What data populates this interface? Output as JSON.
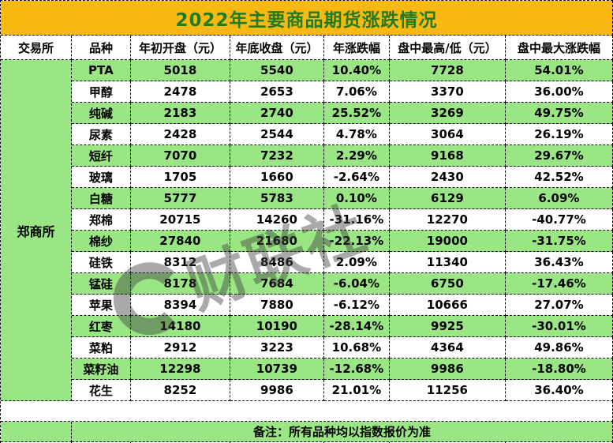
{
  "chart_data": {
    "type": "table",
    "title": "2022年主要商品期货涨跌情况",
    "columns": [
      "交易所",
      "品种",
      "年初开盘（元）",
      "年底收盘（元）",
      "年涨跌幅",
      "盘中最高/低（元）",
      "盘中最大涨跌幅"
    ],
    "exchange": "郑商所",
    "rows": [
      {
        "variety": "PTA",
        "open": "5018",
        "close": "5540",
        "year_change": "10.40%",
        "intraday_high_low": "7728",
        "max_intraday_change": "54.01%"
      },
      {
        "variety": "甲醇",
        "open": "2478",
        "close": "2653",
        "year_change": "7.06%",
        "intraday_high_low": "3370",
        "max_intraday_change": "36.00%"
      },
      {
        "variety": "纯碱",
        "open": "2183",
        "close": "2740",
        "year_change": "25.52%",
        "intraday_high_low": "3269",
        "max_intraday_change": "49.75%"
      },
      {
        "variety": "尿素",
        "open": "2428",
        "close": "2544",
        "year_change": "4.78%",
        "intraday_high_low": "3064",
        "max_intraday_change": "26.19%"
      },
      {
        "variety": "短纤",
        "open": "7070",
        "close": "7232",
        "year_change": "2.29%",
        "intraday_high_low": "9168",
        "max_intraday_change": "29.67%"
      },
      {
        "variety": "玻璃",
        "open": "1705",
        "close": "1660",
        "year_change": "-2.64%",
        "intraday_high_low": "2430",
        "max_intraday_change": "42.52%"
      },
      {
        "variety": "白糖",
        "open": "5777",
        "close": "5783",
        "year_change": "0.10%",
        "intraday_high_low": "6129",
        "max_intraday_change": "6.09%"
      },
      {
        "variety": "郑棉",
        "open": "20715",
        "close": "14260",
        "year_change": "-31.16%",
        "intraday_high_low": "12270",
        "max_intraday_change": "-40.77%"
      },
      {
        "variety": "棉纱",
        "open": "27840",
        "close": "21680",
        "year_change": "-22.13%",
        "intraday_high_low": "19000",
        "max_intraday_change": "-31.75%"
      },
      {
        "variety": "硅铁",
        "open": "8312",
        "close": "8486",
        "year_change": "2.09%",
        "intraday_high_low": "11340",
        "max_intraday_change": "36.43%"
      },
      {
        "variety": "锰硅",
        "open": "8178",
        "close": "7684",
        "year_change": "-6.04%",
        "intraday_high_low": "6750",
        "max_intraday_change": "-17.46%"
      },
      {
        "variety": "苹果",
        "open": "8394",
        "close": "7880",
        "year_change": "-6.12%",
        "intraday_high_low": "10666",
        "max_intraday_change": "27.07%"
      },
      {
        "variety": "红枣",
        "open": "14180",
        "close": "10190",
        "year_change": "-28.14%",
        "intraday_high_low": "9925",
        "max_intraday_change": "-30.01%"
      },
      {
        "variety": "菜粕",
        "open": "2912",
        "close": "3223",
        "year_change": "10.68%",
        "intraday_high_low": "4364",
        "max_intraday_change": "49.86%"
      },
      {
        "variety": "菜籽油",
        "open": "12298",
        "close": "10739",
        "year_change": "-12.68%",
        "intraday_high_low": "9986",
        "max_intraday_change": "-18.80%"
      },
      {
        "variety": "花生",
        "open": "8252",
        "close": "9986",
        "year_change": "21.01%",
        "intraday_high_low": "11256",
        "max_intraday_change": "36.40%"
      }
    ],
    "row_banding": "odd rows green, even rows white, starting green at PTA",
    "note": "备注：所有品种均以指数报价为准",
    "watermark": "财联社",
    "colors": {
      "row_green": "#9AE584",
      "title_bg": "#F9B912",
      "title_text": "#217B21",
      "grid_border": "#000000"
    }
  }
}
